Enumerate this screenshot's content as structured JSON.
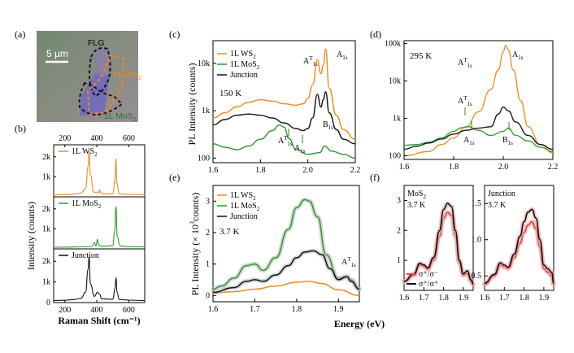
{
  "colors": {
    "ws2": "#f08a1c",
    "mos2": "#2a9a2a",
    "junction": "#111111",
    "grey": "#b8b8b8",
    "red": "#e8403a",
    "peak_label_green": "#4a7a2a"
  },
  "panels": {
    "a": {
      "label": "(a)",
      "scale_bar": "5 μm",
      "flg_label": "FLG",
      "ws2_label": "1L WS",
      "ws2_sub": "2",
      "mos2_label": "1L MoS",
      "mos2_sub": "2"
    },
    "b": {
      "label": "(b)",
      "top_ticks": [
        "200",
        "400",
        "600"
      ],
      "bottom_ticks": [
        "200",
        "400",
        "600"
      ],
      "ylabel": "Intensity (counts)",
      "xlabel": "Raman Shift (cm⁻¹)",
      "ws2_ticks": [
        "2k",
        "1k",
        "0"
      ],
      "mos2_ticks": [
        "2k",
        "1k",
        "0"
      ],
      "junc_ticks": [
        "2k",
        "1k",
        "0"
      ],
      "legend_ws2": "1L WS",
      "legend_ws2_sub": "2",
      "legend_mos2": "1L MoS",
      "legend_mos2_sub": "2",
      "legend_junction": "Junction"
    },
    "c": {
      "label": "(c)",
      "ylabel": "PL Intensity (counts)",
      "yticks": [
        "10k",
        "1k",
        "100"
      ],
      "xticks": [
        "1.6",
        "1.8",
        "2.0",
        "2.2"
      ],
      "legend": [
        "1L WS",
        "1L MoS",
        "Junction"
      ],
      "legend_subs": [
        "2",
        "2",
        ""
      ],
      "temp": "150 K",
      "peaks": [
        "A",
        "T",
        "1s",
        "A",
        "1s",
        "B",
        "1s",
        "A",
        "T",
        "1s",
        "A",
        "1s"
      ]
    },
    "d": {
      "label": "(d)",
      "yticks": [
        "100k",
        "10k",
        "1k",
        "100"
      ],
      "xticks": [
        "1.6",
        "1.8",
        "2.0",
        "2.2"
      ],
      "temp": "295 K",
      "peaks": [
        "A",
        "T",
        "1s",
        "A",
        "1s",
        "A",
        "T",
        "1s",
        "A",
        "1s",
        "B",
        "1s"
      ]
    },
    "e": {
      "label": "(e)",
      "ylabel": "PL Intensity (× 10",
      "ylabel_sup": "3",
      "ylabel_end": "counts)",
      "yticks": [
        "3",
        "2",
        "1",
        "0"
      ],
      "xticks": [
        "1.6",
        "1.7",
        "1.8",
        "1.9"
      ],
      "legend": [
        "1L WS",
        "1L MoS",
        "Junction"
      ],
      "legend_subs": [
        "2",
        "2",
        ""
      ],
      "temp": "3.7 K",
      "peak": [
        "A",
        "T",
        "1s"
      ]
    },
    "f": {
      "label": "(f)",
      "left_title": "MoS",
      "left_title_sub": "2",
      "left_temp": "3.7 K",
      "right_title": "Junction",
      "right_temp": "3.7 K",
      "left_yticks": [
        "3",
        "2",
        "1"
      ],
      "right_yticks": [
        "1.5",
        "1.0",
        "0.5"
      ],
      "left_xticks": [
        "1.6",
        "1.7",
        "1.8",
        "1.9"
      ],
      "right_xticks": [
        "1.6",
        "1.7",
        "1.8",
        "1.9"
      ],
      "legend1": "σ⁺/σ⁻",
      "legend2": "σ⁺/σ⁺"
    },
    "xlabel": "Energy (eV)"
  },
  "chart_data": [
    {
      "type": "line",
      "title": "(b) 1L WS2 Raman",
      "xlabel": "Raman Shift (cm-1)",
      "ylabel": "Intensity (counts)",
      "xlim": [
        130,
        700
      ],
      "ylim": [
        0,
        2600
      ],
      "series": [
        {
          "name": "1L WS2",
          "x": [
            130,
            200,
            250,
            300,
            330,
            345,
            352,
            360,
            380,
            410,
            417,
            425,
            440,
            500,
            515,
            520,
            525,
            540,
            600,
            700
          ],
          "values": [
            100,
            110,
            130,
            180,
            420,
            1500,
            2300,
            1100,
            240,
            200,
            350,
            200,
            150,
            160,
            900,
            1900,
            700,
            150,
            120,
            100
          ]
        }
      ]
    },
    {
      "type": "line",
      "title": "(b) 1L MoS2 Raman",
      "xlim": [
        130,
        700
      ],
      "ylim": [
        0,
        2600
      ],
      "series": [
        {
          "name": "1L MoS2",
          "x": [
            130,
            200,
            300,
            370,
            385,
            395,
            404,
            412,
            430,
            500,
            512,
            520,
            528,
            545,
            600,
            700
          ],
          "values": [
            80,
            90,
            100,
            120,
            300,
            150,
            480,
            200,
            130,
            160,
            900,
            2100,
            600,
            150,
            110,
            100
          ]
        }
      ]
    },
    {
      "type": "line",
      "title": "(b) Junction Raman",
      "xlim": [
        130,
        700
      ],
      "ylim": [
        0,
        2600
      ],
      "series": [
        {
          "name": "Junction",
          "x": [
            130,
            200,
            250,
            300,
            330,
            345,
            352,
            360,
            385,
            404,
            418,
            430,
            500,
            515,
            520,
            527,
            540,
            600,
            700
          ],
          "values": [
            100,
            110,
            140,
            200,
            500,
            1600,
            2200,
            900,
            300,
            500,
            400,
            180,
            160,
            700,
            1200,
            500,
            150,
            120,
            100
          ]
        }
      ]
    },
    {
      "type": "line",
      "title": "(c) 150 K",
      "xlabel": "Energy (eV)",
      "ylabel": "PL Intensity (counts)",
      "xlim": [
        1.6,
        2.2
      ],
      "ylim": [
        80,
        30000
      ],
      "series": [
        {
          "name": "1L WS2",
          "x": [
            1.6,
            1.65,
            1.7,
            1.75,
            1.8,
            1.85,
            1.9,
            1.95,
            1.98,
            2.0,
            2.02,
            2.04,
            2.055,
            2.065,
            2.075,
            2.09,
            2.12,
            2.15,
            2.2
          ],
          "values": [
            700,
            900,
            1200,
            1500,
            1700,
            1600,
            1400,
            1300,
            1400,
            1800,
            3500,
            12000,
            6000,
            9000,
            20000,
            3000,
            800,
            400,
            250
          ]
        },
        {
          "name": "1L MoS2",
          "x": [
            1.6,
            1.65,
            1.7,
            1.75,
            1.8,
            1.85,
            1.88,
            1.9,
            1.92,
            1.95,
            2.0,
            2.05,
            2.07,
            2.1,
            2.15,
            2.2
          ],
          "values": [
            200,
            170,
            150,
            180,
            250,
            380,
            500,
            450,
            260,
            150,
            120,
            130,
            180,
            140,
            120,
            100
          ]
        },
        {
          "name": "Junction",
          "x": [
            1.6,
            1.65,
            1.7,
            1.75,
            1.8,
            1.85,
            1.9,
            1.95,
            1.98,
            2.0,
            2.02,
            2.04,
            2.055,
            2.065,
            2.075,
            2.09,
            2.12,
            2.15,
            2.2
          ],
          "values": [
            500,
            650,
            800,
            850,
            800,
            700,
            550,
            420,
            380,
            420,
            700,
            2200,
            1200,
            1700,
            2500,
            900,
            400,
            250,
            200
          ]
        }
      ]
    },
    {
      "type": "line",
      "title": "(d) 295 K",
      "xlim": [
        1.6,
        2.2
      ],
      "ylim": [
        80,
        120000
      ],
      "series": [
        {
          "name": "1L WS2",
          "x": [
            1.6,
            1.7,
            1.75,
            1.8,
            1.85,
            1.9,
            1.95,
            1.98,
            2.0,
            2.01,
            2.02,
            2.04,
            2.07,
            2.1,
            2.15,
            2.2
          ],
          "values": [
            100,
            130,
            200,
            300,
            600,
            1500,
            6000,
            20000,
            60000,
            90000,
            70000,
            20000,
            3000,
            600,
            200,
            120
          ]
        },
        {
          "name": "1L MoS2",
          "x": [
            1.6,
            1.65,
            1.7,
            1.75,
            1.8,
            1.83,
            1.86,
            1.9,
            1.95,
            2.0,
            2.02,
            2.05,
            2.1,
            2.15,
            2.2
          ],
          "values": [
            190,
            200,
            230,
            300,
            450,
            560,
            600,
            480,
            350,
            450,
            550,
            350,
            250,
            170,
            130
          ]
        },
        {
          "name": "Junction",
          "x": [
            1.6,
            1.65,
            1.7,
            1.75,
            1.8,
            1.85,
            1.9,
            1.95,
            1.98,
            2.0,
            2.02,
            2.05,
            2.1,
            2.15,
            2.2
          ],
          "values": [
            150,
            180,
            220,
            280,
            380,
            480,
            550,
            600,
            1300,
            2000,
            1600,
            800,
            350,
            200,
            150
          ]
        }
      ]
    },
    {
      "type": "line",
      "title": "(e) 3.7 K",
      "xlabel": "Energy (eV)",
      "ylabel": "PL Intensity (x10^3 counts)",
      "xlim": [
        1.6,
        1.95
      ],
      "ylim": [
        -0.2,
        3.5
      ],
      "series": [
        {
          "name": "1L WS2",
          "x": [
            1.6,
            1.65,
            1.7,
            1.75,
            1.8,
            1.83,
            1.86,
            1.9,
            1.95
          ],
          "values": [
            0.08,
            0.12,
            0.2,
            0.3,
            0.42,
            0.45,
            0.38,
            0.18,
            0.0
          ]
        },
        {
          "name": "1L MoS2",
          "x": [
            1.6,
            1.62,
            1.65,
            1.68,
            1.7,
            1.72,
            1.75,
            1.78,
            1.8,
            1.82,
            1.83,
            1.85,
            1.87,
            1.9,
            1.92,
            1.93,
            1.95
          ],
          "values": [
            0.2,
            0.3,
            0.55,
            0.95,
            1.0,
            0.8,
            1.2,
            2.1,
            2.8,
            3.05,
            3.0,
            2.5,
            1.3,
            0.55,
            0.6,
            0.5,
            0.2
          ]
        },
        {
          "name": "Junction",
          "x": [
            1.6,
            1.65,
            1.68,
            1.7,
            1.72,
            1.75,
            1.78,
            1.8,
            1.82,
            1.84,
            1.86,
            1.88,
            1.9,
            1.92,
            1.93,
            1.95
          ],
          "values": [
            0.1,
            0.25,
            0.45,
            0.5,
            0.45,
            0.65,
            0.95,
            1.2,
            1.38,
            1.42,
            1.3,
            0.85,
            0.5,
            0.6,
            0.45,
            0.2
          ]
        }
      ]
    },
    {
      "type": "line",
      "title": "(f) MoS2 3.7 K",
      "xlim": [
        1.6,
        1.95
      ],
      "ylim": [
        0,
        3.5
      ],
      "series": [
        {
          "name": "σ+/σ-",
          "x": [
            1.6,
            1.65,
            1.68,
            1.7,
            1.72,
            1.75,
            1.78,
            1.8,
            1.82,
            1.84,
            1.86,
            1.88,
            1.9,
            1.92,
            1.94,
            1.95
          ],
          "values": [
            0.3,
            0.5,
            0.85,
            0.8,
            0.7,
            1.0,
            1.8,
            2.4,
            2.6,
            2.5,
            1.8,
            0.9,
            0.5,
            0.55,
            0.3,
            0.2
          ]
        },
        {
          "name": "σ+/σ+",
          "x": [
            1.6,
            1.65,
            1.68,
            1.7,
            1.72,
            1.75,
            1.78,
            1.8,
            1.82,
            1.84,
            1.86,
            1.88,
            1.9,
            1.92,
            1.94,
            1.95
          ],
          "values": [
            0.3,
            0.55,
            0.9,
            0.85,
            0.75,
            1.1,
            2.0,
            2.7,
            2.9,
            2.8,
            2.0,
            1.0,
            0.55,
            0.65,
            0.35,
            0.2
          ]
        }
      ]
    },
    {
      "type": "line",
      "title": "(f) Junction 3.7 K",
      "xlim": [
        1.6,
        1.95
      ],
      "ylim": [
        0.3,
        1.75
      ],
      "series": [
        {
          "name": "σ+/σ-",
          "x": [
            1.6,
            1.65,
            1.68,
            1.7,
            1.72,
            1.75,
            1.78,
            1.8,
            1.82,
            1.84,
            1.86,
            1.88,
            1.9,
            1.92,
            1.94,
            1.95
          ],
          "values": [
            0.38,
            0.5,
            0.65,
            0.62,
            0.6,
            0.75,
            0.95,
            1.1,
            1.2,
            1.25,
            1.15,
            0.9,
            0.6,
            0.55,
            0.5,
            0.38
          ]
        },
        {
          "name": "σ+/σ+",
          "x": [
            1.6,
            1.65,
            1.68,
            1.7,
            1.72,
            1.75,
            1.78,
            1.8,
            1.82,
            1.84,
            1.86,
            1.88,
            1.9,
            1.92,
            1.94,
            1.95
          ],
          "values": [
            0.4,
            0.52,
            0.68,
            0.65,
            0.62,
            0.8,
            1.05,
            1.25,
            1.38,
            1.42,
            1.3,
            1.0,
            0.65,
            0.6,
            0.55,
            0.4
          ]
        }
      ]
    }
  ]
}
